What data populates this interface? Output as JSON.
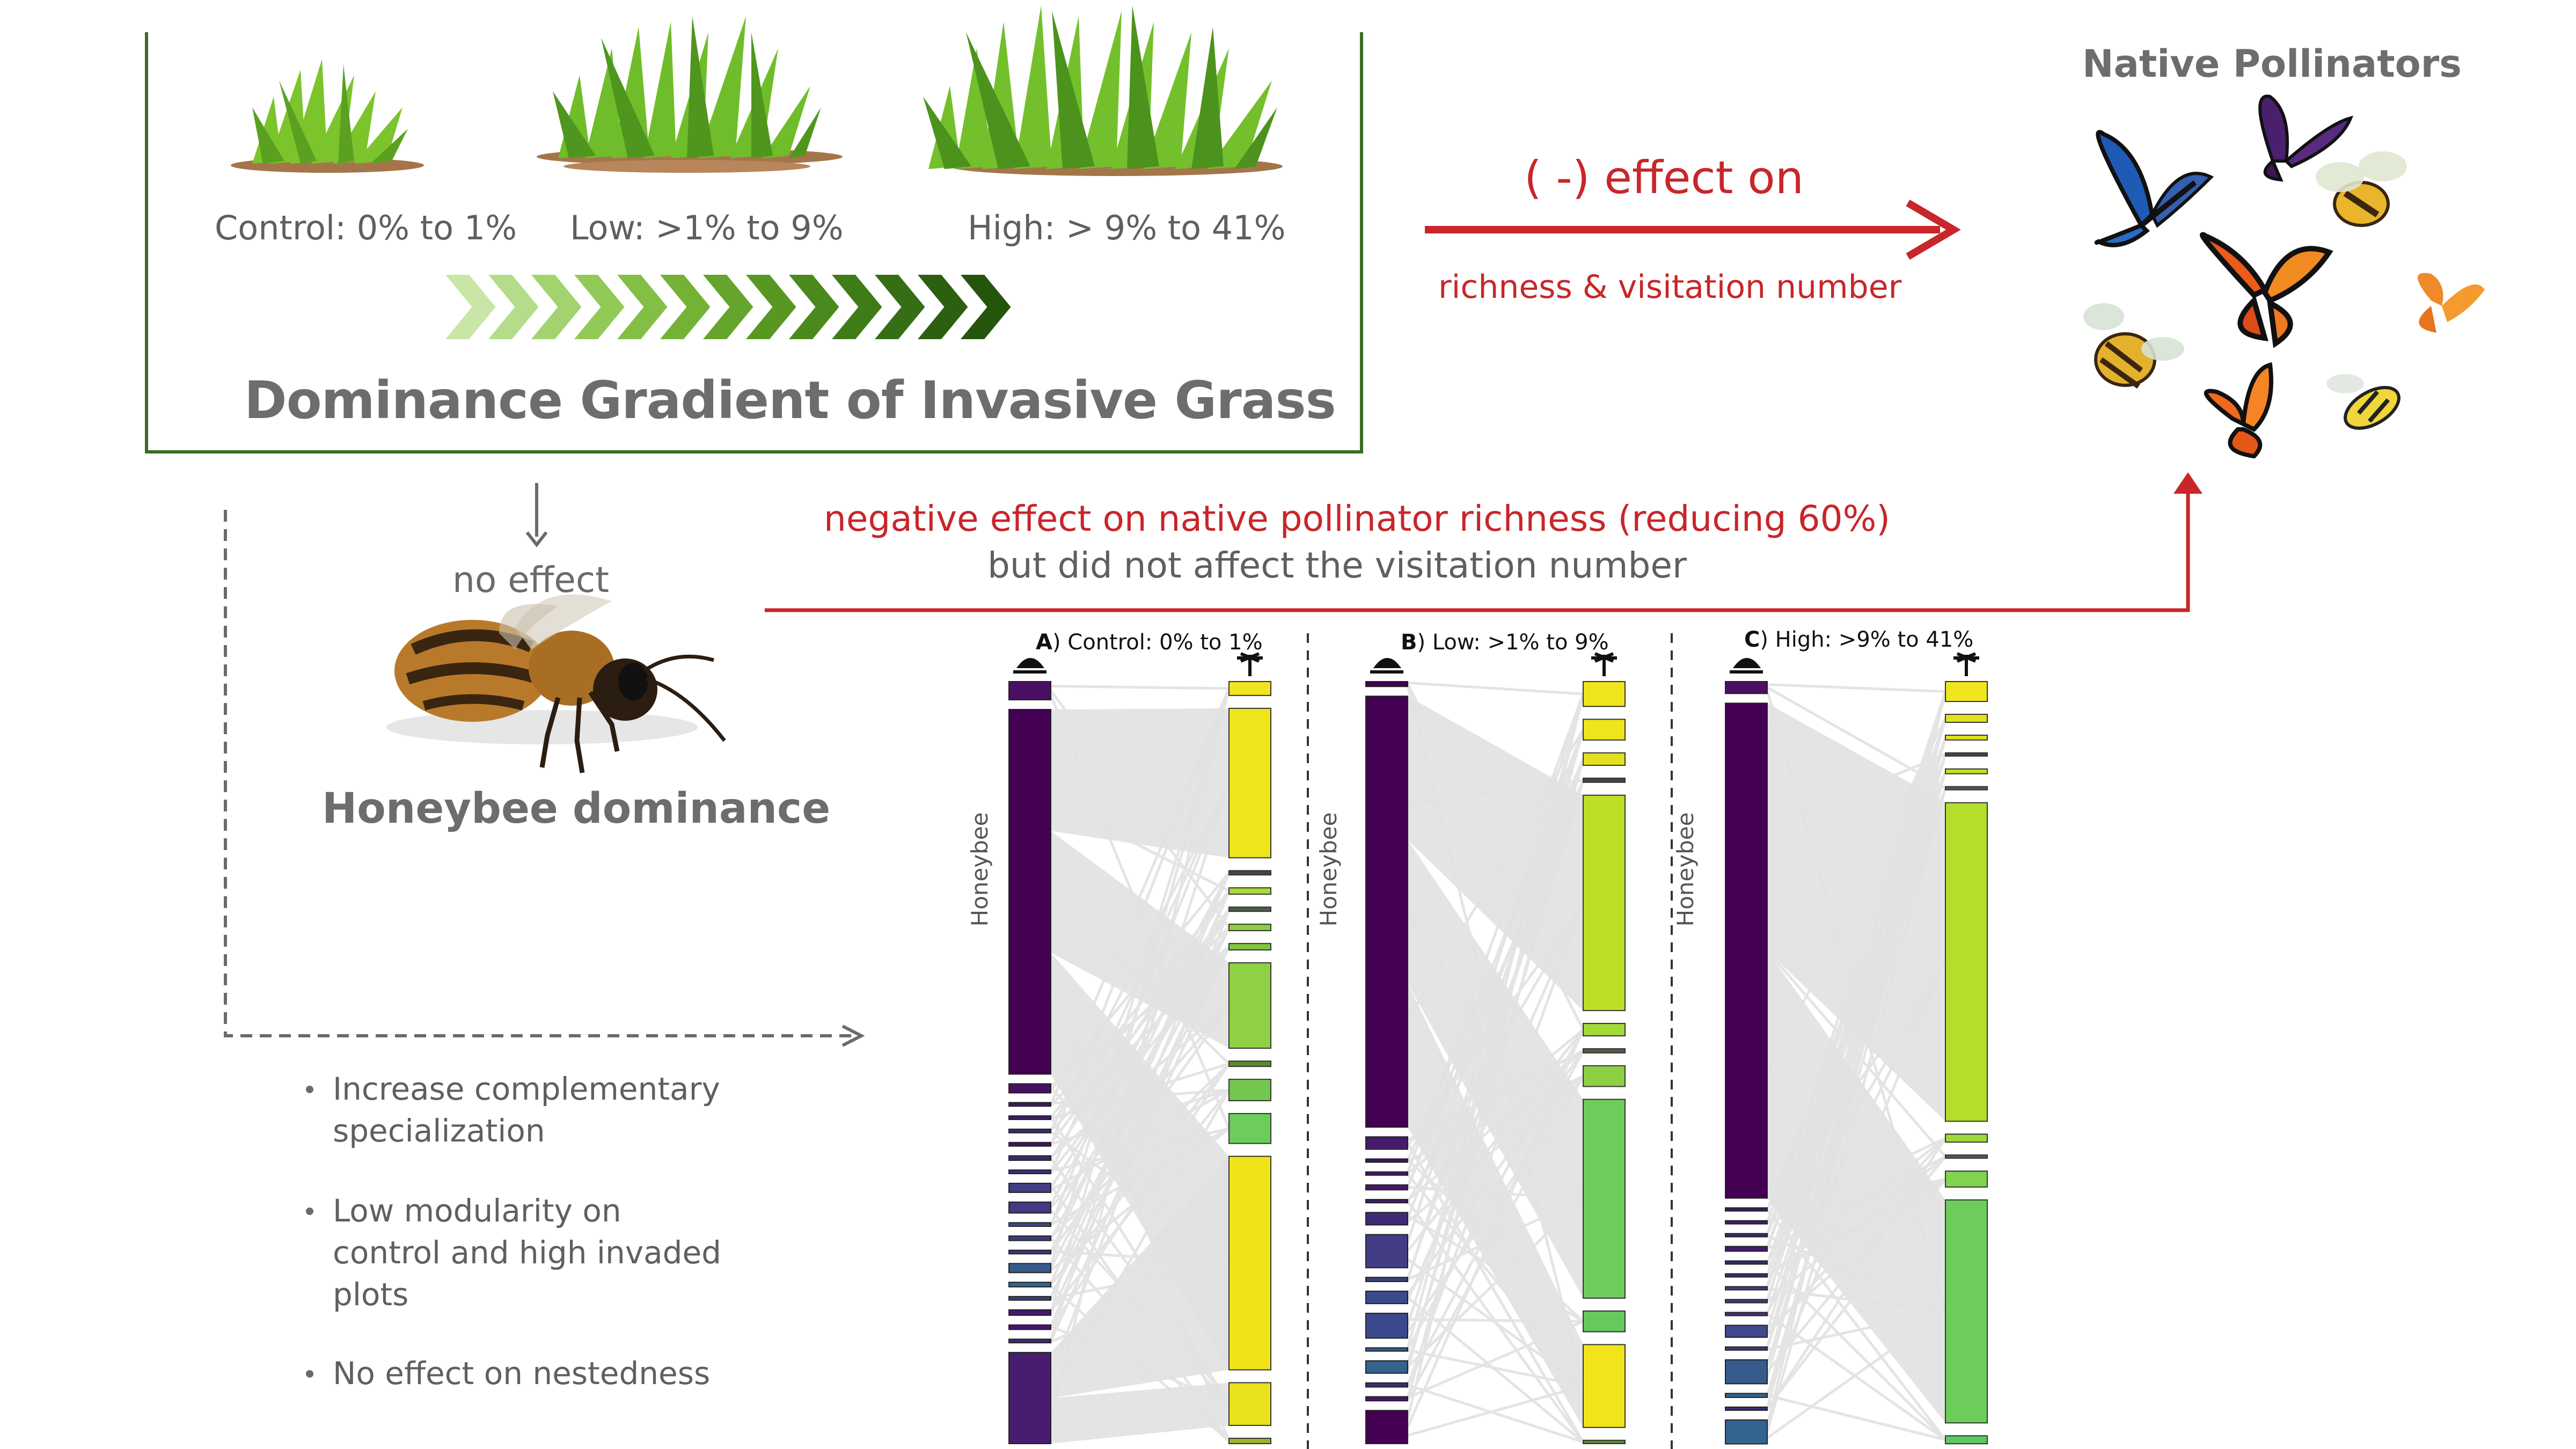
{
  "gradient": {
    "levels": [
      {
        "label": "Control: 0% to 1%"
      },
      {
        "label": "Low: >1% to 9%"
      },
      {
        "label": "High: > 9% to 41%"
      }
    ],
    "title": "Dominance Gradient of Invasive Grass",
    "arrow_colors": [
      "#c9e6a6",
      "#b5dc8a",
      "#a3d36e",
      "#93c957",
      "#83bf44",
      "#74b236",
      "#66a52b",
      "#589822",
      "#4a8a1c",
      "#3f7c18",
      "#356e14",
      "#2c6010",
      "#25540d"
    ]
  },
  "pollinators": {
    "title": "Native Pollinators"
  },
  "effect": {
    "arrow_label": "( -) effect on",
    "arrow_sublabel": "richness & visitation number",
    "color": "#c8262a"
  },
  "honeybee": {
    "no_effect": "no effect",
    "title": "Honeybee dominance",
    "richness_line1": "negative effect on native pollinator richness (reducing 60%)",
    "richness_line2": "but did not affect the visitation number"
  },
  "bullets": [
    {
      "lines": [
        "Increase complementary",
        "specialization"
      ]
    },
    {
      "lines": [
        "Low modularity on",
        "control and high invaded",
        "plots"
      ]
    },
    {
      "lines": [
        "No effect on nestedness"
      ]
    }
  ],
  "networks": [
    {
      "panel_letter": "A",
      "panel_label": ") Control: 0% to 1%",
      "axis_label": "Honeybee",
      "pollinators": [
        {
          "size": 2,
          "color": "#4a0f62"
        },
        {
          "size": 40,
          "color": "#440154"
        },
        {
          "size": 1,
          "color": "#471063"
        },
        {
          "size": 0.4,
          "color": "#3a1c5c"
        },
        {
          "size": 0.4,
          "color": "#3c1d62"
        },
        {
          "size": 0.4,
          "color": "#3a2a6e"
        },
        {
          "size": 0.4,
          "color": "#44126a"
        },
        {
          "size": 0.5,
          "color": "#2f2f6b"
        },
        {
          "size": 0.4,
          "color": "#3e2a78"
        },
        {
          "size": 1,
          "color": "#433d86"
        },
        {
          "size": 1.2,
          "color": "#433a83"
        },
        {
          "size": 0.4,
          "color": "#3b4a8a"
        },
        {
          "size": 0.5,
          "color": "#3a3f7c"
        },
        {
          "size": 0.4,
          "color": "#46327f"
        },
        {
          "size": 1,
          "color": "#375b8d"
        },
        {
          "size": 0.5,
          "color": "#32648e"
        },
        {
          "size": 0.4,
          "color": "#3f3c7a"
        },
        {
          "size": 0.6,
          "color": "#46186d"
        },
        {
          "size": 0.5,
          "color": "#4a1472"
        },
        {
          "size": 0.4,
          "color": "#3a2d72"
        },
        {
          "size": 10,
          "color": "#481c6e"
        }
      ],
      "plants": [
        {
          "size": 1.3,
          "color": "#f1e51d"
        },
        {
          "size": 14,
          "color": "#eee51b"
        },
        {
          "size": 0.4,
          "color": "#3c4a3a"
        },
        {
          "size": 0.6,
          "color": "#a8db34"
        },
        {
          "size": 0.4,
          "color": "#4e5d4a"
        },
        {
          "size": 0.6,
          "color": "#8ecf3e"
        },
        {
          "size": 0.6,
          "color": "#7fc63f"
        },
        {
          "size": 8,
          "color": "#8fd144"
        },
        {
          "size": 0.5,
          "color": "#5a8a2f"
        },
        {
          "size": 2,
          "color": "#73c64e"
        },
        {
          "size": 2.8,
          "color": "#6ccd5a"
        },
        {
          "size": 20,
          "color": "#f0e419"
        },
        {
          "size": 4,
          "color": "#e9e21c"
        },
        {
          "size": 0.5,
          "color": "#9bb52a"
        }
      ],
      "links_heavy": [
        [
          1,
          1
        ],
        [
          1,
          7
        ],
        [
          1,
          11
        ],
        [
          20,
          11
        ],
        [
          20,
          12
        ]
      ]
    },
    {
      "panel_letter": "B",
      "panel_label": ") Low: >1% to 9%",
      "axis_label": "Honeybee",
      "pollinators": [
        {
          "size": 0.6,
          "color": "#440154"
        },
        {
          "size": 52,
          "color": "#440154"
        },
        {
          "size": 1.5,
          "color": "#481a6c"
        },
        {
          "size": 0.4,
          "color": "#3a1c5c"
        },
        {
          "size": 0.4,
          "color": "#44126a"
        },
        {
          "size": 0.6,
          "color": "#46186d"
        },
        {
          "size": 0.4,
          "color": "#3c1d62"
        },
        {
          "size": 1.5,
          "color": "#3e2a78"
        },
        {
          "size": 4,
          "color": "#433d86"
        },
        {
          "size": 0.5,
          "color": "#3a3f7c"
        },
        {
          "size": 1.5,
          "color": "#3b4a8a"
        },
        {
          "size": 3,
          "color": "#3a4a8c"
        },
        {
          "size": 0.4,
          "color": "#375b8d"
        },
        {
          "size": 1.5,
          "color": "#32648e"
        },
        {
          "size": 0.5,
          "color": "#3a2d72"
        },
        {
          "size": 0.5,
          "color": "#4a1472"
        },
        {
          "size": 4,
          "color": "#440154"
        }
      ],
      "plants": [
        {
          "size": 3,
          "color": "#f1e51d"
        },
        {
          "size": 2.5,
          "color": "#eee51b"
        },
        {
          "size": 1.5,
          "color": "#e3e11f"
        },
        {
          "size": 0.5,
          "color": "#3c4a3a"
        },
        {
          "size": 26,
          "color": "#bddf26"
        },
        {
          "size": 1.5,
          "color": "#a2da37"
        },
        {
          "size": 0.5,
          "color": "#4e5d4a"
        },
        {
          "size": 2.5,
          "color": "#8dd044"
        },
        {
          "size": 24,
          "color": "#6ccd5a"
        },
        {
          "size": 2.5,
          "color": "#67c85c"
        },
        {
          "size": 10,
          "color": "#f2e41a"
        },
        {
          "size": 0.4,
          "color": "#5a8a2f"
        }
      ],
      "links_heavy": [
        [
          1,
          4
        ],
        [
          1,
          8
        ],
        [
          1,
          10
        ]
      ]
    },
    {
      "panel_letter": "C",
      "panel_label": ") High: >9% to 41%",
      "axis_label": "Honeybee",
      "pollinators": [
        {
          "size": 1.5,
          "color": "#4a0f62"
        },
        {
          "size": 62,
          "color": "#440154"
        },
        {
          "size": 0.4,
          "color": "#3a1c5c"
        },
        {
          "size": 0.4,
          "color": "#3c1d62"
        },
        {
          "size": 0.4,
          "color": "#3a2a6e"
        },
        {
          "size": 0.6,
          "color": "#46186d"
        },
        {
          "size": 0.4,
          "color": "#2f2f6b"
        },
        {
          "size": 0.4,
          "color": "#3e2a78"
        },
        {
          "size": 0.4,
          "color": "#433d86"
        },
        {
          "size": 0.4,
          "color": "#3a3f7c"
        },
        {
          "size": 0.4,
          "color": "#46327f"
        },
        {
          "size": 1.5,
          "color": "#3e4a8c"
        },
        {
          "size": 0.4,
          "color": "#3f3c7a"
        },
        {
          "size": 3,
          "color": "#375b8d"
        },
        {
          "size": 0.5,
          "color": "#32648e"
        },
        {
          "size": 0.4,
          "color": "#3a2d72"
        },
        {
          "size": 3,
          "color": "#33648f"
        }
      ],
      "plants": [
        {
          "size": 2.5,
          "color": "#f1e51d"
        },
        {
          "size": 1,
          "color": "#e3e11f"
        },
        {
          "size": 0.6,
          "color": "#dfe11f"
        },
        {
          "size": 0.4,
          "color": "#3c4a3a"
        },
        {
          "size": 0.6,
          "color": "#c7e020"
        },
        {
          "size": 0.4,
          "color": "#4e5d4a"
        },
        {
          "size": 40,
          "color": "#b4de2c"
        },
        {
          "size": 1,
          "color": "#9dd93b"
        },
        {
          "size": 0.4,
          "color": "#4e5d4a"
        },
        {
          "size": 2,
          "color": "#7fd34e"
        },
        {
          "size": 28,
          "color": "#6ccd5a"
        },
        {
          "size": 1,
          "color": "#5cc863"
        }
      ],
      "links_heavy": [
        [
          1,
          6
        ],
        [
          1,
          10
        ]
      ]
    }
  ]
}
